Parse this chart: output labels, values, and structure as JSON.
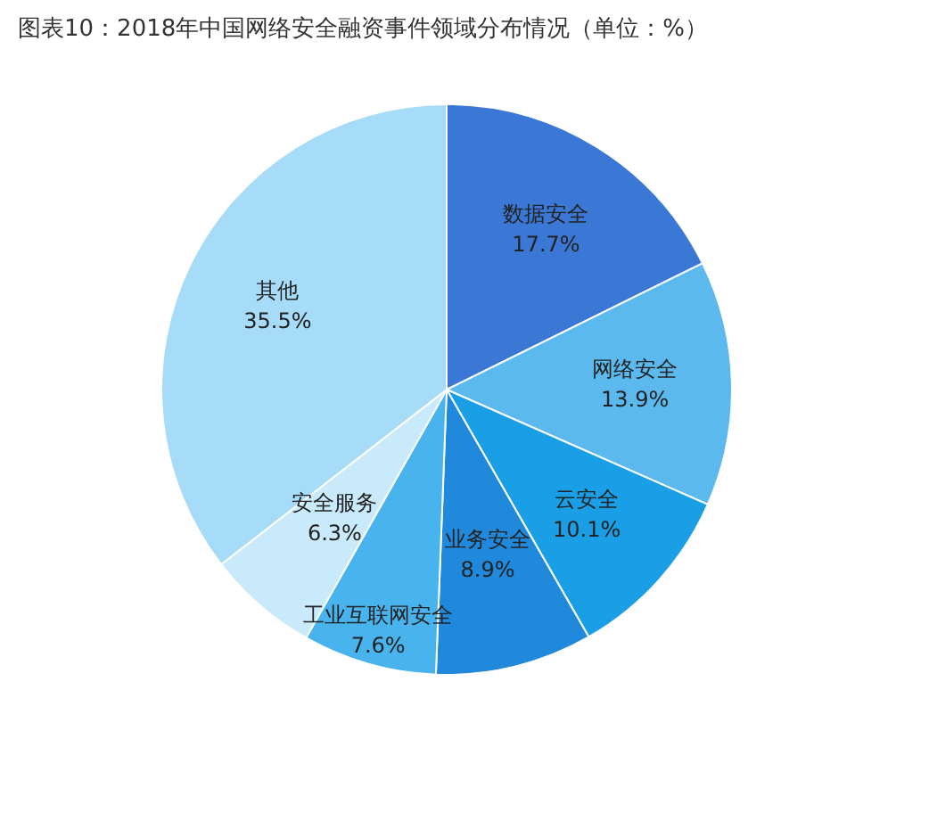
{
  "chart_data": {
    "type": "pie",
    "title": "图表10：2018年中国网络安全融资事件领域分布情况（单位：%）",
    "categories": [
      "数据安全",
      "网络安全",
      "云安全",
      "业务安全",
      "工业互联网安全",
      "安全服务",
      "其他"
    ],
    "values": [
      17.7,
      13.9,
      10.1,
      8.9,
      7.6,
      6.3,
      35.5
    ],
    "value_labels": [
      "17.7%",
      "13.9%",
      "10.1%",
      "8.9%",
      "7.6%",
      "6.3%",
      "35.5%"
    ],
    "colors": [
      "#3b78d6",
      "#5cb9ee",
      "#1a9fe6",
      "#2189dc",
      "#48b3ec",
      "#c9eafb",
      "#a6dcf7"
    ],
    "legend": false
  }
}
